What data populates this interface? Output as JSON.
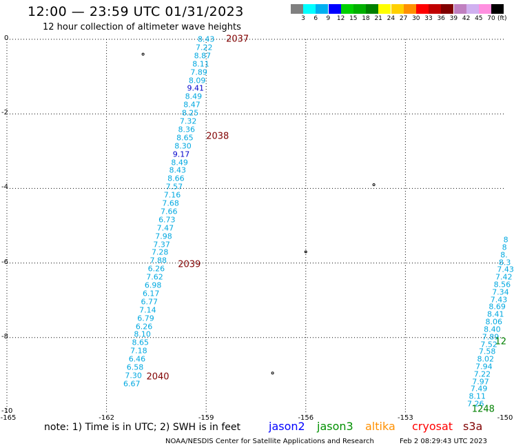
{
  "title": "12:00 — 23:59 UTC 01/31/2023",
  "subtitle": "12 hour collection of altimeter wave heights",
  "legend": {
    "unit": "(ft)",
    "swatches": [
      {
        "label": "3",
        "color": "#808080"
      },
      {
        "label": "6",
        "color": "#00ffff"
      },
      {
        "label": "9",
        "color": "#00b0f0"
      },
      {
        "label": "12",
        "color": "#0000ff"
      },
      {
        "label": "15",
        "color": "#00d000"
      },
      {
        "label": "18",
        "color": "#00b000"
      },
      {
        "label": "21",
        "color": "#008000"
      },
      {
        "label": "24",
        "color": "#ffff00"
      },
      {
        "label": "27",
        "color": "#ffd000"
      },
      {
        "label": "30",
        "color": "#ff9000"
      },
      {
        "label": "33",
        "color": "#ff0000"
      },
      {
        "label": "36",
        "color": "#c00000"
      },
      {
        "label": "39",
        "color": "#800000"
      },
      {
        "label": "42",
        "color": "#c080c0"
      },
      {
        "label": "45",
        "color": "#d0b0f0"
      },
      {
        "label": "70",
        "color": "#ff90e0"
      },
      {
        "label": "",
        "color": "#000000"
      }
    ]
  },
  "axes": {
    "lat_ticks": [
      "0",
      "-2",
      "-4",
      "-6",
      "-8",
      "-10"
    ],
    "lon_ticks": [
      "-165",
      "-162",
      "-159",
      "-156",
      "-153",
      "-150"
    ]
  },
  "map": {
    "lon_range": [
      -165,
      -150
    ],
    "lat_range": [
      -10,
      0
    ],
    "grid_lons": [
      -162,
      -159,
      -156,
      -153
    ],
    "grid_lats": [
      -2,
      -4,
      -6,
      -8
    ]
  },
  "colors": {
    "obs_cyan": "#00a8e0",
    "obs_blue": "#0000cc",
    "pass_red": "#800000",
    "pass_green": "#008000"
  },
  "tracks": [
    {
      "name": "track-west",
      "points": [
        {
          "lat": 0.0,
          "lon": -159.0,
          "v": "8.43"
        },
        {
          "lat": -0.22,
          "lon": -159.06,
          "v": "7.22"
        },
        {
          "lat": -0.44,
          "lon": -159.11,
          "v": "8.87"
        },
        {
          "lat": -0.66,
          "lon": -159.16,
          "v": "8.11"
        },
        {
          "lat": -0.88,
          "lon": -159.22,
          "v": "7.89"
        },
        {
          "lat": -1.1,
          "lon": -159.27,
          "v": "8.09"
        },
        {
          "lat": -1.32,
          "lon": -159.32,
          "v": "9.41"
        },
        {
          "lat": -1.54,
          "lon": -159.38,
          "v": "8.49"
        },
        {
          "lat": -1.76,
          "lon": -159.43,
          "v": "8.47"
        },
        {
          "lat": -1.98,
          "lon": -159.48,
          "v": "8.25"
        },
        {
          "lat": -2.2,
          "lon": -159.54,
          "v": "7.32"
        },
        {
          "lat": -2.42,
          "lon": -159.59,
          "v": "8.36"
        },
        {
          "lat": -2.64,
          "lon": -159.64,
          "v": "8.65"
        },
        {
          "lat": -2.86,
          "lon": -159.7,
          "v": "8.30"
        },
        {
          "lat": -3.08,
          "lon": -159.75,
          "v": "9.17"
        },
        {
          "lat": -3.3,
          "lon": -159.8,
          "v": "8.49"
        },
        {
          "lat": -3.52,
          "lon": -159.86,
          "v": "8.43"
        },
        {
          "lat": -3.74,
          "lon": -159.91,
          "v": "8.66"
        },
        {
          "lat": -3.96,
          "lon": -159.96,
          "v": "7.57"
        },
        {
          "lat": -4.18,
          "lon": -160.02,
          "v": "7.16"
        },
        {
          "lat": -4.4,
          "lon": -160.07,
          "v": "7.68"
        },
        {
          "lat": -4.62,
          "lon": -160.12,
          "v": "7.66"
        },
        {
          "lat": -4.84,
          "lon": -160.18,
          "v": "6.73"
        },
        {
          "lat": -5.06,
          "lon": -160.23,
          "v": "7.47"
        },
        {
          "lat": -5.28,
          "lon": -160.28,
          "v": "7.98"
        },
        {
          "lat": -5.5,
          "lon": -160.34,
          "v": "7.37"
        },
        {
          "lat": -5.72,
          "lon": -160.39,
          "v": "7.28"
        },
        {
          "lat": -5.94,
          "lon": -160.44,
          "v": "7.88"
        },
        {
          "lat": -6.16,
          "lon": -160.5,
          "v": "6.26"
        },
        {
          "lat": -6.38,
          "lon": -160.55,
          "v": "7.62"
        },
        {
          "lat": -6.6,
          "lon": -160.6,
          "v": "6.98"
        },
        {
          "lat": -6.82,
          "lon": -160.66,
          "v": "6.17"
        },
        {
          "lat": -7.04,
          "lon": -160.71,
          "v": "6.77"
        },
        {
          "lat": -7.26,
          "lon": -160.76,
          "v": "7.14"
        },
        {
          "lat": -7.48,
          "lon": -160.82,
          "v": "6.79"
        },
        {
          "lat": -7.7,
          "lon": -160.87,
          "v": "6.26"
        },
        {
          "lat": -7.92,
          "lon": -160.92,
          "v": "8.10"
        },
        {
          "lat": -8.14,
          "lon": -160.98,
          "v": "8.65"
        },
        {
          "lat": -8.36,
          "lon": -161.03,
          "v": "7.18"
        },
        {
          "lat": -8.58,
          "lon": -161.08,
          "v": "6.46"
        },
        {
          "lat": -8.8,
          "lon": -161.14,
          "v": "6.58"
        },
        {
          "lat": -9.02,
          "lon": -161.19,
          "v": "7.30"
        },
        {
          "lat": -9.24,
          "lon": -161.24,
          "v": "6.67"
        }
      ]
    },
    {
      "name": "track-east",
      "points": [
        {
          "lat": -5.38,
          "lon": -150.05,
          "v": "8"
        },
        {
          "lat": -5.58,
          "lon": -150.09,
          "v": "8"
        },
        {
          "lat": -5.78,
          "lon": -150.14,
          "v": "8."
        },
        {
          "lat": -5.98,
          "lon": -150.19,
          "v": "8.3"
        },
        {
          "lat": -6.18,
          "lon": -150.24,
          "v": "7.43"
        },
        {
          "lat": -6.38,
          "lon": -150.29,
          "v": "7.42"
        },
        {
          "lat": -6.58,
          "lon": -150.34,
          "v": "8.56"
        },
        {
          "lat": -6.78,
          "lon": -150.39,
          "v": "7.34"
        },
        {
          "lat": -6.98,
          "lon": -150.44,
          "v": "7.43"
        },
        {
          "lat": -7.18,
          "lon": -150.49,
          "v": "8.69"
        },
        {
          "lat": -7.38,
          "lon": -150.54,
          "v": "8.41"
        },
        {
          "lat": -7.58,
          "lon": -150.59,
          "v": "8.06"
        },
        {
          "lat": -7.78,
          "lon": -150.64,
          "v": "8.40"
        },
        {
          "lat": -7.98,
          "lon": -150.69,
          "v": "7.89"
        },
        {
          "lat": -8.18,
          "lon": -150.74,
          "v": "7.52"
        },
        {
          "lat": -8.38,
          "lon": -150.79,
          "v": "7.58"
        },
        {
          "lat": -8.58,
          "lon": -150.84,
          "v": "8.02"
        },
        {
          "lat": -8.78,
          "lon": -150.89,
          "v": "7.94"
        },
        {
          "lat": -8.98,
          "lon": -150.94,
          "v": "7.22"
        },
        {
          "lat": -9.18,
          "lon": -150.99,
          "v": "7.97"
        },
        {
          "lat": -9.38,
          "lon": -151.04,
          "v": "7.49"
        },
        {
          "lat": -9.58,
          "lon": -151.09,
          "v": "8.11"
        },
        {
          "lat": -9.78,
          "lon": -151.14,
          "v": "7.26"
        }
      ]
    }
  ],
  "pass_labels": [
    {
      "text": "2037",
      "lat": 0.0,
      "lon": -158.4,
      "color": "red"
    },
    {
      "text": "2038",
      "lat": -2.6,
      "lon": -159.0,
      "color": "red"
    },
    {
      "text": "2039",
      "lat": -6.05,
      "lon": -159.85,
      "color": "red"
    },
    {
      "text": "2040",
      "lat": -9.05,
      "lon": -160.8,
      "color": "red"
    },
    {
      "text": "12",
      "lon": -150.3,
      "lat": -8.12,
      "color": "green"
    },
    {
      "text": "1248",
      "lon": -151.0,
      "lat": -9.92,
      "color": "green"
    }
  ],
  "footer": {
    "note": "note:  1) Time is in UTC;  2) SWH is in feet",
    "satellites": [
      {
        "name": "jason2",
        "color": "#0000ff"
      },
      {
        "name": "jason3",
        "color": "#009000"
      },
      {
        "name": "altika",
        "color": "#ff9000"
      },
      {
        "name": "cryosat",
        "color": "#ff0000"
      },
      {
        "name": "s3a",
        "color": "#800000"
      }
    ],
    "credit": "NOAA/NESDIS Center for Satellite Applications and Research",
    "timestamp": "Feb  2 08:29:43 UTC 2023"
  }
}
